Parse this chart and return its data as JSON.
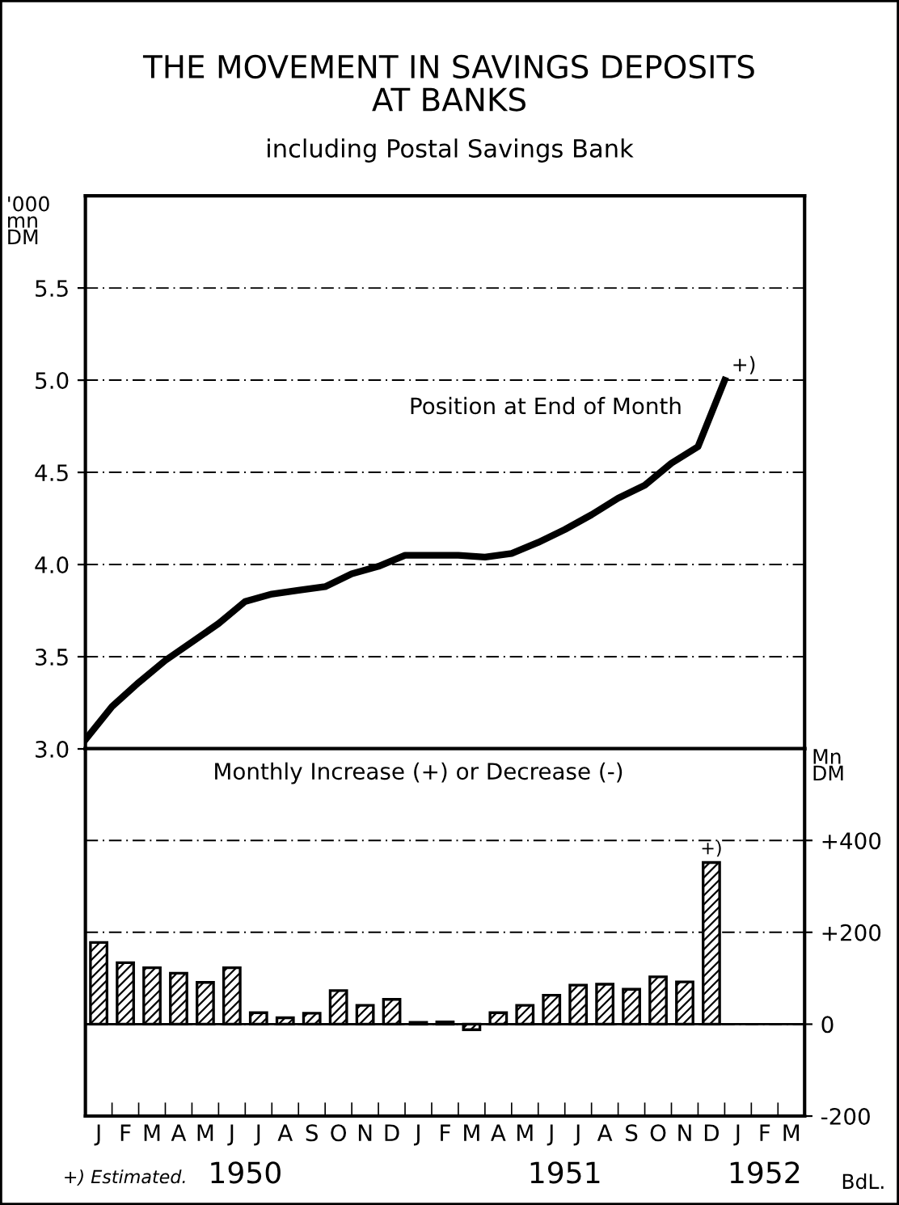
{
  "chart_data": [
    {
      "type": "line",
      "title": "THE MOVEMENT IN SAVINGS DEPOSITS\nAT BANKS",
      "subtitle": "including Postal Savings Bank",
      "ylabel": "'000\nmn\nDM",
      "categories": [
        null,
        null,
        null,
        null,
        null,
        null,
        null,
        null,
        null,
        null,
        null,
        null,
        null,
        null,
        null,
        null,
        null,
        null,
        null,
        null,
        null,
        null,
        null,
        null,
        null,
        null,
        null,
        null
      ],
      "series": [
        {
          "name": "Position at End of Month",
          "color": "#000000",
          "values": [
            3.05,
            3.23,
            3.36,
            3.48,
            3.58,
            3.68,
            3.8,
            3.84,
            3.86,
            3.88,
            3.95,
            3.99,
            4.05,
            4.05,
            4.05,
            4.04,
            4.06,
            4.12,
            4.19,
            4.27,
            4.36,
            4.43,
            4.55,
            4.64,
            5.0,
            null,
            null,
            null
          ]
        }
      ],
      "ylim": [
        3.0,
        6.0
      ],
      "yticks": [
        {
          "value": 3.0,
          "label": "3.0"
        },
        3.5,
        {
          "value": 4.0,
          "label": "4.0"
        },
        4.5,
        {
          "value": 5.0,
          "label": "5.0"
        },
        5.5
      ],
      "tick_labels": "y",
      "grid": "y",
      "line_style": "solid",
      "annotations": [
        "+)"
      ]
    },
    {
      "type": "bar",
      "ylabel": "Mn\nDM",
      "categories": [
        "J",
        "F",
        "M",
        "A",
        "M",
        "J",
        "J",
        "A",
        "S",
        "O",
        "N",
        "D",
        "J",
        "F",
        "M",
        "A",
        "M",
        "J",
        "J",
        "A",
        "S",
        "O",
        "N",
        "D",
        "J",
        "F",
        "M"
      ],
      "series": [
        {
          "name": "Monthly Increase (+) or Decrease (-)",
          "color": "#000000",
          "values": [
            178,
            134,
            123,
            111,
            91,
            123,
            25,
            14,
            24,
            73,
            41,
            54,
            4,
            5,
            -12,
            25,
            41,
            63,
            85,
            87,
            76,
            103,
            92,
            352,
            null,
            null,
            null
          ]
        }
      ],
      "ylim": [
        -200,
        600
      ],
      "yticks": [
        -200,
        0,
        {
          "value": 200,
          "label": "+200"
        },
        {
          "value": 400,
          "label": "+400"
        }
      ],
      "grid": "y",
      "ref_lines": [
        {
          "axis": "y",
          "value": 0,
          "line_style": "solid"
        }
      ],
      "annotations": [
        "1950",
        "1951",
        "1952",
        "+)",
        "+) Estimated.",
        "BdL."
      ]
    }
  ]
}
